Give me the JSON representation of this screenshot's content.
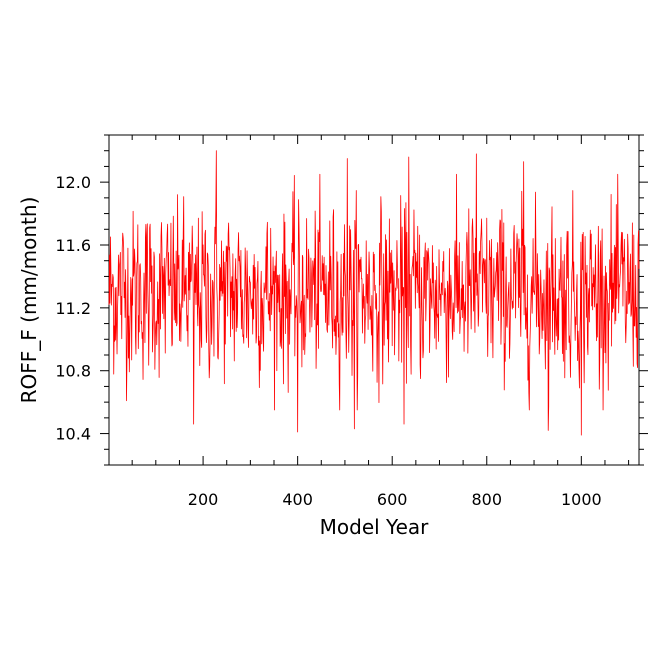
{
  "chart_data": {
    "type": "line",
    "title": "",
    "xlabel": "Model Year",
    "ylabel": "ROFF_F (mm/month)",
    "xlim": [
      1,
      1122
    ],
    "ylim": [
      10.2,
      12.3
    ],
    "x_ticks": [
      {
        "value": 200,
        "label": "200"
      },
      {
        "value": 400,
        "label": "400"
      },
      {
        "value": 600,
        "label": "600"
      },
      {
        "value": 800,
        "label": "800"
      },
      {
        "value": 1000,
        "label": "1000"
      }
    ],
    "y_ticks": [
      {
        "value": 10.4,
        "label": "10.4"
      },
      {
        "value": 10.8,
        "label": "10.8"
      },
      {
        "value": 11.2,
        "label": "11.2"
      },
      {
        "value": 11.6,
        "label": "11.6"
      },
      {
        "value": 12.0,
        "label": "12.0"
      }
    ],
    "x_minor_step": 50,
    "y_minor_step": 0.1,
    "grid": false,
    "series": [
      {
        "color": "#ff0000",
        "x_start": 1,
        "x_step": 1,
        "mean": 11.3,
        "note_values": "Annual ROFF_F for model years 1-1122; fluctuates mostly between ~10.8 and ~11.8 with extremes near 10.39 and 12.2.",
        "extremes": [
          {
            "x": 228,
            "y": 12.2
          },
          {
            "x": 505,
            "y": 12.15
          },
          {
            "x": 635,
            "y": 12.16
          },
          {
            "x": 778,
            "y": 12.18
          },
          {
            "x": 878,
            "y": 12.13
          },
          {
            "x": 180,
            "y": 10.46
          },
          {
            "x": 400,
            "y": 10.41
          },
          {
            "x": 520,
            "y": 10.43
          },
          {
            "x": 625,
            "y": 10.46
          },
          {
            "x": 930,
            "y": 10.42
          },
          {
            "x": 1000,
            "y": 10.39
          }
        ]
      }
    ]
  }
}
